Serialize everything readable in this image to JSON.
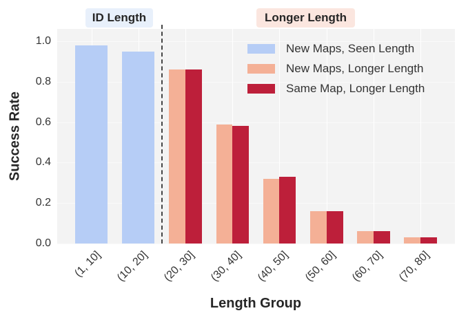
{
  "chart_data": {
    "type": "bar",
    "title": "",
    "xlabel": "Length Group",
    "ylabel": "Success Rate",
    "ylim": [
      0,
      1.06
    ],
    "yticks": [
      "0.0",
      "0.2",
      "0.4",
      "0.6",
      "0.8",
      "1.0"
    ],
    "categories": [
      "(1, 10]",
      "(10, 20]",
      "(20, 30]",
      "(30, 40]",
      "(40, 50]",
      "(50, 60]",
      "(60, 70]",
      "(70, 80]"
    ],
    "series": [
      {
        "name": "New Maps, Seen Length",
        "color": "#b6cdf6",
        "values": [
          0.98,
          0.95,
          null,
          null,
          null,
          null,
          null,
          null
        ]
      },
      {
        "name": "New Maps, Longer Length",
        "color": "#f4b096",
        "values": [
          null,
          null,
          0.86,
          0.59,
          0.32,
          0.16,
          0.06,
          0.03
        ]
      },
      {
        "name": "Same Map, Longer Length",
        "color": "#bd1f3a",
        "values": [
          null,
          null,
          0.86,
          0.58,
          0.33,
          0.16,
          0.06,
          0.03
        ]
      }
    ],
    "annotations": [
      {
        "text": "ID Length",
        "background": "#e8f0fb",
        "region": "left of divider"
      },
      {
        "text": "Longer Length",
        "background": "#fbe6df",
        "region": "right of divider"
      }
    ],
    "divider": {
      "style": "dashed",
      "position": "between (10, 20] and (20, 30]"
    },
    "grid": true,
    "legend_position": "upper right"
  },
  "labels": {
    "xlabel": "Length Group",
    "ylabel": "Success Rate",
    "id_region": "ID Length",
    "longer_region": "Longer Length"
  },
  "legend": [
    {
      "label": "New Maps, Seen Length",
      "color": "#b6cdf6"
    },
    {
      "label": "New Maps, Longer Length",
      "color": "#f4b096"
    },
    {
      "label": "Same Map, Longer Length",
      "color": "#bd1f3a"
    }
  ],
  "yticks": [
    "0.0",
    "0.2",
    "0.4",
    "0.6",
    "0.8",
    "1.0"
  ],
  "xticks": [
    "(1, 10]",
    "(10, 20]",
    "(20, 30]",
    "(30, 40]",
    "(40, 50]",
    "(50, 60]",
    "(60, 70]",
    "(70, 80]"
  ]
}
